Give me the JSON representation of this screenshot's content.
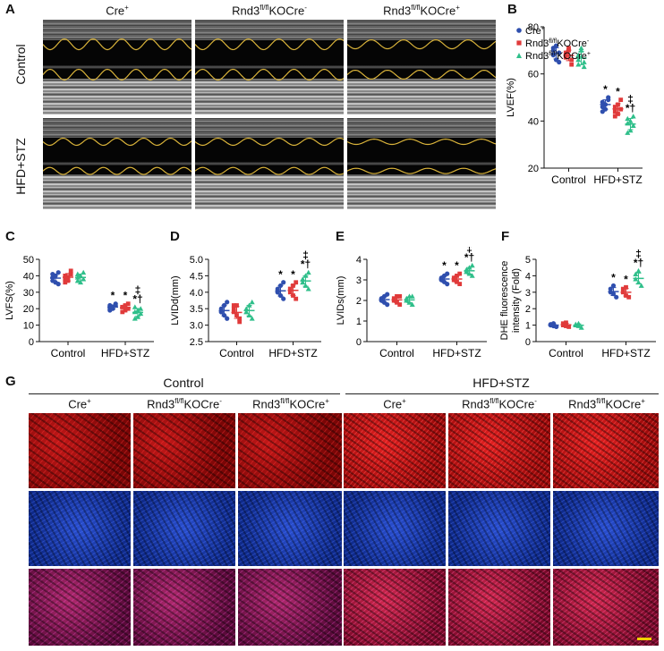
{
  "panel_labels": {
    "a": "A",
    "b": "B",
    "c": "C",
    "d": "D",
    "e": "E",
    "f": "F",
    "g": "G"
  },
  "groups": {
    "g1": {
      "base": "Cre",
      "sup": "+"
    },
    "g2": {
      "base": "Rnd3",
      "sup": "fl/fl",
      "tail": "KOCre",
      "sup2": "-"
    },
    "g3": {
      "base": "Rnd3",
      "sup": "fl/fl",
      "tail": "KOCre",
      "sup2": "+"
    }
  },
  "conditions": {
    "control": "Control",
    "hfd": "HFD+STZ"
  },
  "colors": {
    "g1": "#2f4fae",
    "g2": "#e03a3a",
    "g3": "#2fbf8a",
    "trace": "#d8b23a",
    "scalebar": "#f0d000"
  },
  "chart_data": [
    {
      "id": "B",
      "type": "scatter",
      "ylabel": "LVEF(%)",
      "ylim": [
        20,
        80
      ],
      "yticks": [
        20,
        40,
        60,
        80
      ],
      "categories": [
        "Control",
        "HFD+STZ"
      ],
      "legend": "top",
      "series": [
        {
          "name": "Cre+",
          "group": "g1",
          "values": [
            [
              68,
              72,
              65,
              70,
              66,
              69,
              71
            ],
            [
              48,
              45,
              50,
              44,
              47,
              49,
              46
            ]
          ]
        },
        {
          "name": "Rnd3fl/flKOCre-",
          "group": "g2",
          "values": [
            [
              67,
              71,
              64,
              69,
              70,
              66,
              68
            ],
            [
              46,
              43,
              49,
              42,
              47,
              45,
              44
            ]
          ]
        },
        {
          "name": "Rnd3fl/flKOCre+",
          "group": "g3",
          "values": [
            [
              66,
              70,
              63,
              68,
              71,
              65,
              64
            ],
            [
              39,
              36,
              42,
              35,
              40,
              38,
              41
            ]
          ]
        }
      ],
      "annotations": [
        [
          "*"
        ],
        [
          "*"
        ],
        [
          "‡",
          "*†"
        ]
      ]
    },
    {
      "id": "C",
      "type": "scatter",
      "ylabel": "LVFS(%)",
      "ylim": [
        0,
        50
      ],
      "yticks": [
        0,
        10,
        20,
        30,
        40,
        50
      ],
      "categories": [
        "Control",
        "HFD+STZ"
      ],
      "series": [
        {
          "name": "Cre+",
          "group": "g1",
          "values": [
            [
              39,
              36,
              42,
              37,
              40,
              35,
              41
            ],
            [
              22,
              20,
              23,
              19,
              21,
              22,
              20
            ]
          ]
        },
        {
          "name": "Rnd3fl/flKOCre-",
          "group": "g2",
          "values": [
            [
              40,
              37,
              43,
              36,
              39,
              41,
              38
            ],
            [
              21,
              19,
              23,
              18,
              22,
              20,
              21
            ]
          ]
        },
        {
          "name": "Rnd3fl/flKOCre+",
          "group": "g3",
          "values": [
            [
              39,
              36,
              42,
              37,
              40,
              38,
              41
            ],
            [
              18,
              15,
              20,
              14,
              19,
              17,
              21
            ]
          ]
        }
      ],
      "annotations": [
        [
          "*"
        ],
        [
          "*"
        ],
        [
          "‡",
          "*†"
        ]
      ]
    },
    {
      "id": "D",
      "type": "scatter",
      "ylabel": "LVIDd(mm)",
      "ylim": [
        2.5,
        5.0
      ],
      "yticks": [
        2.5,
        3.0,
        3.5,
        4.0,
        4.5,
        5.0
      ],
      "categories": [
        "Control",
        "HFD+STZ"
      ],
      "series": [
        {
          "name": "Cre+",
          "group": "g1",
          "values": [
            [
              3.4,
              3.6,
              3.2,
              3.5,
              3.3,
              3.7,
              3.4
            ],
            [
              4.0,
              4.2,
              3.8,
              4.1,
              3.9,
              4.3,
              4.0
            ]
          ]
        },
        {
          "name": "Rnd3fl/flKOCre-",
          "group": "g2",
          "values": [
            [
              3.4,
              3.6,
              3.1,
              3.5,
              3.3,
              3.2,
              3.6
            ],
            [
              4.0,
              4.2,
              3.8,
              4.1,
              3.9,
              4.3,
              4.1
            ]
          ]
        },
        {
          "name": "Rnd3fl/flKOCre+",
          "group": "g3",
          "values": [
            [
              3.4,
              3.6,
              3.2,
              3.5,
              3.3,
              3.7,
              3.4
            ],
            [
              4.3,
              4.5,
              4.1,
              4.4,
              4.2,
              4.6,
              4.3
            ]
          ]
        }
      ],
      "annotations": [
        [
          "*"
        ],
        [
          "*"
        ],
        [
          "‡",
          "*†"
        ]
      ]
    },
    {
      "id": "E",
      "type": "scatter",
      "ylabel": "LVIDs(mm)",
      "ylim": [
        0,
        4
      ],
      "yticks": [
        0,
        1,
        2,
        3,
        4
      ],
      "categories": [
        "Control",
        "HFD+STZ"
      ],
      "series": [
        {
          "name": "Cre+",
          "group": "g1",
          "values": [
            [
              2.0,
              2.2,
              1.8,
              2.1,
              1.9,
              2.3,
              2.0
            ],
            [
              3.0,
              3.2,
              2.8,
              3.1,
              2.9,
              3.3,
              3.0
            ]
          ]
        },
        {
          "name": "Rnd3fl/flKOCre-",
          "group": "g2",
          "values": [
            [
              2.0,
              2.2,
              1.8,
              2.1,
              1.9,
              2.2,
              2.0
            ],
            [
              3.0,
              3.2,
              2.8,
              3.1,
              2.9,
              3.3,
              3.0
            ]
          ]
        },
        {
          "name": "Rnd3fl/flKOCre+",
          "group": "g3",
          "values": [
            [
              2.0,
              2.2,
              1.8,
              2.1,
              1.9,
              2.2,
              2.0
            ],
            [
              3.4,
              3.6,
              3.2,
              3.5,
              3.3,
              3.7,
              3.4
            ]
          ]
        }
      ],
      "annotations": [
        [
          "*"
        ],
        [
          "*"
        ],
        [
          "‡",
          "*†"
        ]
      ]
    },
    {
      "id": "F",
      "type": "scatter",
      "ylabel": "DHE fluorescence intensity (Fold)",
      "ylim": [
        0,
        5
      ],
      "yticks": [
        0,
        1,
        2,
        3,
        4,
        5
      ],
      "categories": [
        "Control",
        "HFD+STZ"
      ],
      "series": [
        {
          "name": "Cre+",
          "group": "g1",
          "values": [
            [
              1.0,
              1.1,
              0.9,
              1.05,
              0.95
            ],
            [
              3.0,
              3.4,
              2.7,
              3.2,
              2.9
            ]
          ]
        },
        {
          "name": "Rnd3fl/flKOCre-",
          "group": "g2",
          "values": [
            [
              1.0,
              1.15,
              0.9,
              1.1,
              0.95
            ],
            [
              3.0,
              3.3,
              2.7,
              3.2,
              2.8
            ]
          ]
        },
        {
          "name": "Rnd3fl/flKOCre+",
          "group": "g3",
          "values": [
            [
              1.0,
              1.1,
              0.85,
              1.05,
              0.95
            ],
            [
              3.8,
              4.3,
              3.4,
              4.1,
              3.6
            ]
          ]
        }
      ],
      "annotations": [
        [
          "*"
        ],
        [
          "*"
        ],
        [
          "‡",
          "*†"
        ]
      ]
    }
  ]
}
